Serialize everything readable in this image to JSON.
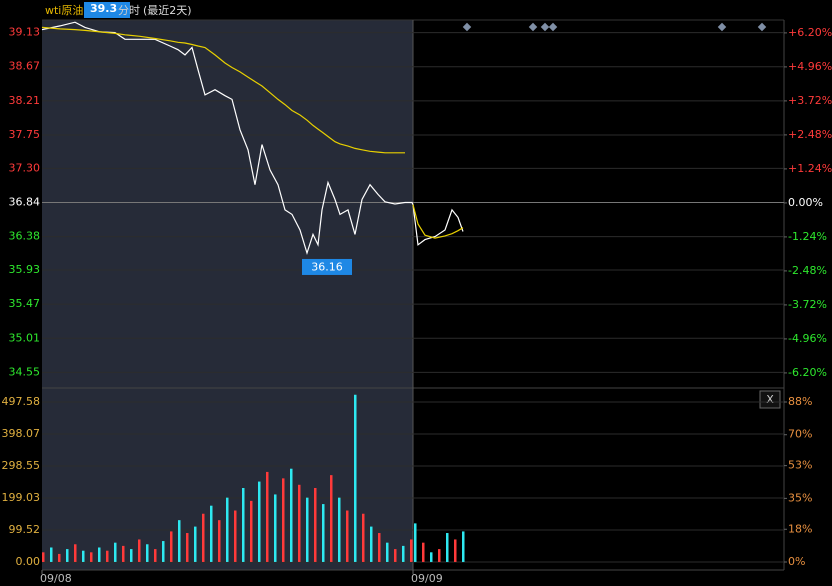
{
  "chart_data": [
    {
      "type": "line",
      "title": "wti原油",
      "cursor_label": "39.3",
      "subtitle": "分时",
      "period": "(最近2天)",
      "close_button": "X",
      "x": [
        0,
        18,
        33,
        43,
        58,
        73,
        83,
        98,
        113,
        128,
        136,
        143,
        150,
        156,
        163,
        173,
        183,
        190,
        198,
        206,
        213,
        220,
        228,
        236,
        243,
        250,
        258,
        265,
        271,
        276,
        280,
        286,
        293,
        298,
        306,
        313,
        320,
        328,
        336,
        343,
        353,
        363,
        370,
        371,
        376,
        383,
        393,
        403,
        410,
        416,
        421
      ],
      "xlim": [
        0,
        742
      ],
      "xticks": [
        {
          "value": 0,
          "label": "09/08"
        },
        {
          "value": 371,
          "label": "09/09"
        }
      ],
      "ylim": [
        34.34,
        39.3
      ],
      "yticks": [
        39.13,
        38.67,
        38.21,
        37.75,
        {
          "value": 37.3,
          "label": "37.30"
        },
        36.84,
        36.38,
        35.93,
        35.47,
        35.01,
        34.55
      ],
      "y2lim": [
        -6.75,
        6.67
      ],
      "y2ticks": [
        {
          "value": 6.2,
          "label": "+6.20%"
        },
        {
          "value": 4.96,
          "label": "+4.96%"
        },
        {
          "value": 3.72,
          "label": "+3.72%"
        },
        {
          "value": 2.48,
          "label": "+2.48%"
        },
        {
          "value": 1.24,
          "label": "+1.24%"
        },
        {
          "value": 0,
          "label": "0.00%"
        },
        {
          "value": -1.24,
          "label": "-1.24%"
        },
        {
          "value": -2.48,
          "label": "-2.48%"
        },
        {
          "value": -3.72,
          "label": "-3.72%"
        },
        {
          "value": -4.96,
          "label": "-4.96%"
        },
        {
          "value": -6.2,
          "label": "-6.20%"
        }
      ],
      "series": [
        {
          "color": "#ffffff",
          "values": [
            39.17,
            39.22,
            39.27,
            39.2,
            39.14,
            39.13,
            39.04,
            39.04,
            39.04,
            38.95,
            38.9,
            38.83,
            38.93,
            38.63,
            38.29,
            38.36,
            38.28,
            38.23,
            37.82,
            37.55,
            37.08,
            37.62,
            37.28,
            37.08,
            36.74,
            36.68,
            36.47,
            36.16,
            36.41,
            36.27,
            36.74,
            37.11,
            36.88,
            36.68,
            36.74,
            36.41,
            36.88,
            37.08,
            36.95,
            36.85,
            36.82,
            36.84,
            36.84,
            36.81,
            36.27,
            36.34,
            36.38,
            36.47,
            36.74,
            36.64,
            36.45
          ]
        },
        {
          "color": "#e8d000",
          "values": [
            39.2,
            39.18,
            39.17,
            39.16,
            39.14,
            39.12,
            39.1,
            39.08,
            39.05,
            39.02,
            39.0,
            38.99,
            38.97,
            38.95,
            38.93,
            38.83,
            38.72,
            38.66,
            38.6,
            38.53,
            38.47,
            38.41,
            38.32,
            38.23,
            38.16,
            38.08,
            38.02,
            37.95,
            37.88,
            37.83,
            37.79,
            37.73,
            37.66,
            37.63,
            37.6,
            37.57,
            37.55,
            37.53,
            37.52,
            37.51,
            37.51,
            37.51,
            null,
            36.81,
            36.55,
            36.4,
            36.36,
            36.39,
            36.42,
            36.46,
            36.5
          ]
        }
      ]
    },
    {
      "type": "bar",
      "x": [
        0,
        8,
        16,
        24,
        32,
        40,
        48,
        56,
        64,
        72,
        80,
        88,
        96,
        104,
        112,
        120,
        128,
        136,
        144,
        152,
        160,
        168,
        176,
        184,
        192,
        200,
        208,
        216,
        224,
        232,
        240,
        248,
        256,
        264,
        272,
        280,
        288,
        296,
        304,
        312,
        320,
        328,
        336,
        344,
        352,
        360,
        368,
        372,
        380,
        388,
        396,
        404,
        412,
        420
      ],
      "xlim": [
        0,
        742
      ],
      "values": [
        30,
        45,
        25,
        40,
        55,
        35,
        30,
        45,
        35,
        60,
        50,
        40,
        70,
        55,
        40,
        65,
        95,
        130,
        90,
        110,
        150,
        175,
        130,
        200,
        160,
        230,
        190,
        250,
        280,
        210,
        260,
        290,
        240,
        200,
        230,
        180,
        270,
        200,
        160,
        520,
        150,
        110,
        90,
        60,
        40,
        50,
        70,
        120,
        60,
        30,
        40,
        90,
        70,
        95
      ],
      "colors": [
        "#ff3a3a",
        "#2ee8f0"
      ],
      "ylim": [
        -25,
        541
      ],
      "yticks": [
        497.58,
        398.07,
        298.55,
        199.03,
        99.52,
        {
          "value": 0,
          "label": "0.00"
        }
      ],
      "y2lim": [
        -4.4,
        95.7
      ],
      "y2ticks": [
        {
          "value": 88,
          "label": "88%"
        },
        {
          "value": 70,
          "label": "70%"
        },
        {
          "value": 53,
          "label": "53%"
        },
        {
          "value": 35,
          "label": "35%"
        },
        {
          "value": 18,
          "label": "18%"
        },
        {
          "value": 0,
          "label": "0%"
        }
      ]
    }
  ]
}
